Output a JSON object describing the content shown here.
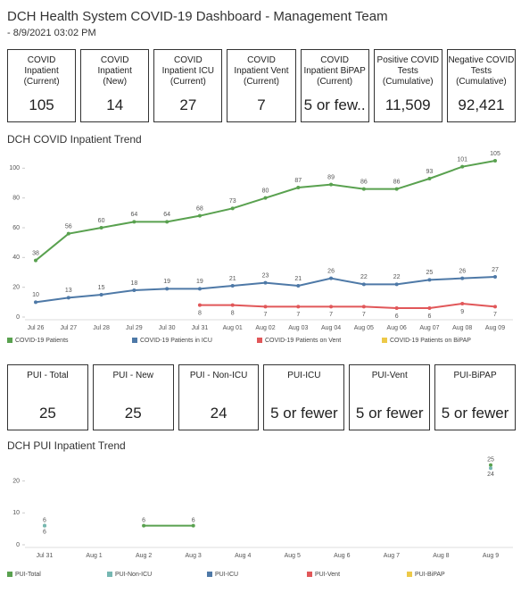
{
  "header": {
    "title": "DCH Health System COVID-19 Dashboard - Management Team",
    "subtitle": "- 8/9/2021 03:02 PM"
  },
  "cards": [
    {
      "label": [
        "COVID",
        "Inpatient",
        "(Current)"
      ],
      "value": "105"
    },
    {
      "label": [
        "COVID",
        "Inpatient",
        "(New)"
      ],
      "value": "14"
    },
    {
      "label": [
        "COVID",
        "Inpatient ICU",
        "(Current)"
      ],
      "value": "27"
    },
    {
      "label": [
        "COVID",
        "Inpatient Vent",
        "(Current)"
      ],
      "value": "7"
    },
    {
      "label": [
        "COVID",
        "Inpatient BiPAP",
        "(Current)"
      ],
      "value": "5 or few.."
    },
    {
      "label": [
        "Positive COVID",
        "Tests",
        "(Cumulative)"
      ],
      "value": "11,509"
    },
    {
      "label": [
        "Negative COVID",
        "Tests",
        "(Cumulative)"
      ],
      "value": "92,421"
    }
  ],
  "pui_cards": [
    {
      "label": [
        "PUI - Total"
      ],
      "value": "25"
    },
    {
      "label": [
        "PUI - New"
      ],
      "value": "25"
    },
    {
      "label": [
        "PUI - Non-ICU"
      ],
      "value": "24"
    },
    {
      "label": [
        "PUI-ICU"
      ],
      "value": "5 or fewer"
    },
    {
      "label": [
        "PUI-Vent"
      ],
      "value": "5 or fewer"
    },
    {
      "label": [
        "PUI-BiPAP"
      ],
      "value": "5 or fewer"
    }
  ],
  "chart_data": [
    {
      "type": "line",
      "title": "DCH COVID Inpatient Trend",
      "legend": "bottom",
      "categories": [
        "Jul 26",
        "Jul 27",
        "Jul 28",
        "Jul 29",
        "Jul 30",
        "Jul 31",
        "Aug 01",
        "Aug 02",
        "Aug 03",
        "Aug 04",
        "Aug 05",
        "Aug 06",
        "Aug 07",
        "Aug 08",
        "Aug 09"
      ],
      "ylim": [
        0,
        108
      ],
      "yticks": [
        0,
        20,
        40,
        60,
        80,
        100
      ],
      "series": [
        {
          "name": "COVID-19 Patients",
          "color": "#59a14f",
          "values": [
            38,
            56,
            60,
            64,
            64,
            68,
            73,
            80,
            87,
            89,
            86,
            86,
            93,
            101,
            105
          ]
        },
        {
          "name": "COVID-19 Patients in ICU",
          "color": "#4e79a7",
          "values": [
            10,
            13,
            15,
            18,
            19,
            19,
            21,
            23,
            21,
            26,
            22,
            22,
            25,
            26,
            27
          ]
        },
        {
          "name": "COVID-19 Patients on Vent",
          "color": "#e15759",
          "values": [
            null,
            null,
            null,
            null,
            null,
            8,
            8,
            7,
            7,
            7,
            7,
            6,
            6,
            9,
            7
          ]
        },
        {
          "name": "COVID-19 Patients on BiPAP",
          "color": "#edc948",
          "values": [
            null,
            null,
            null,
            null,
            null,
            null,
            null,
            null,
            null,
            null,
            null,
            null,
            null,
            null,
            null
          ]
        }
      ]
    },
    {
      "type": "line",
      "title": "DCH PUI Inpatient Trend",
      "legend": "bottom",
      "categories": [
        "Jul 31",
        "Aug 1",
        "Aug 2",
        "Aug 3",
        "Aug 4",
        "Aug 5",
        "Aug 6",
        "Aug 7",
        "Aug 8",
        "Aug 9"
      ],
      "ylim": [
        0,
        28
      ],
      "yticks": [
        0,
        10,
        20
      ],
      "series": [
        {
          "name": "PUI-Total",
          "color": "#59a14f",
          "values": [
            6,
            null,
            6,
            6,
            null,
            null,
            null,
            null,
            null,
            25
          ]
        },
        {
          "name": "PUI-Non-ICU",
          "color": "#76b7b2",
          "values": [
            6,
            null,
            null,
            null,
            null,
            null,
            null,
            null,
            null,
            24
          ]
        },
        {
          "name": "PUI-ICU",
          "color": "#4e79a7",
          "values": [
            null,
            null,
            null,
            null,
            null,
            null,
            null,
            null,
            null,
            null
          ]
        },
        {
          "name": "PUI-Vent",
          "color": "#e15759",
          "values": [
            null,
            null,
            null,
            null,
            null,
            null,
            null,
            null,
            null,
            null
          ]
        },
        {
          "name": "PUI-BiPAP",
          "color": "#edc948",
          "values": [
            null,
            null,
            null,
            null,
            null,
            null,
            null,
            null,
            null,
            null
          ]
        }
      ]
    }
  ]
}
